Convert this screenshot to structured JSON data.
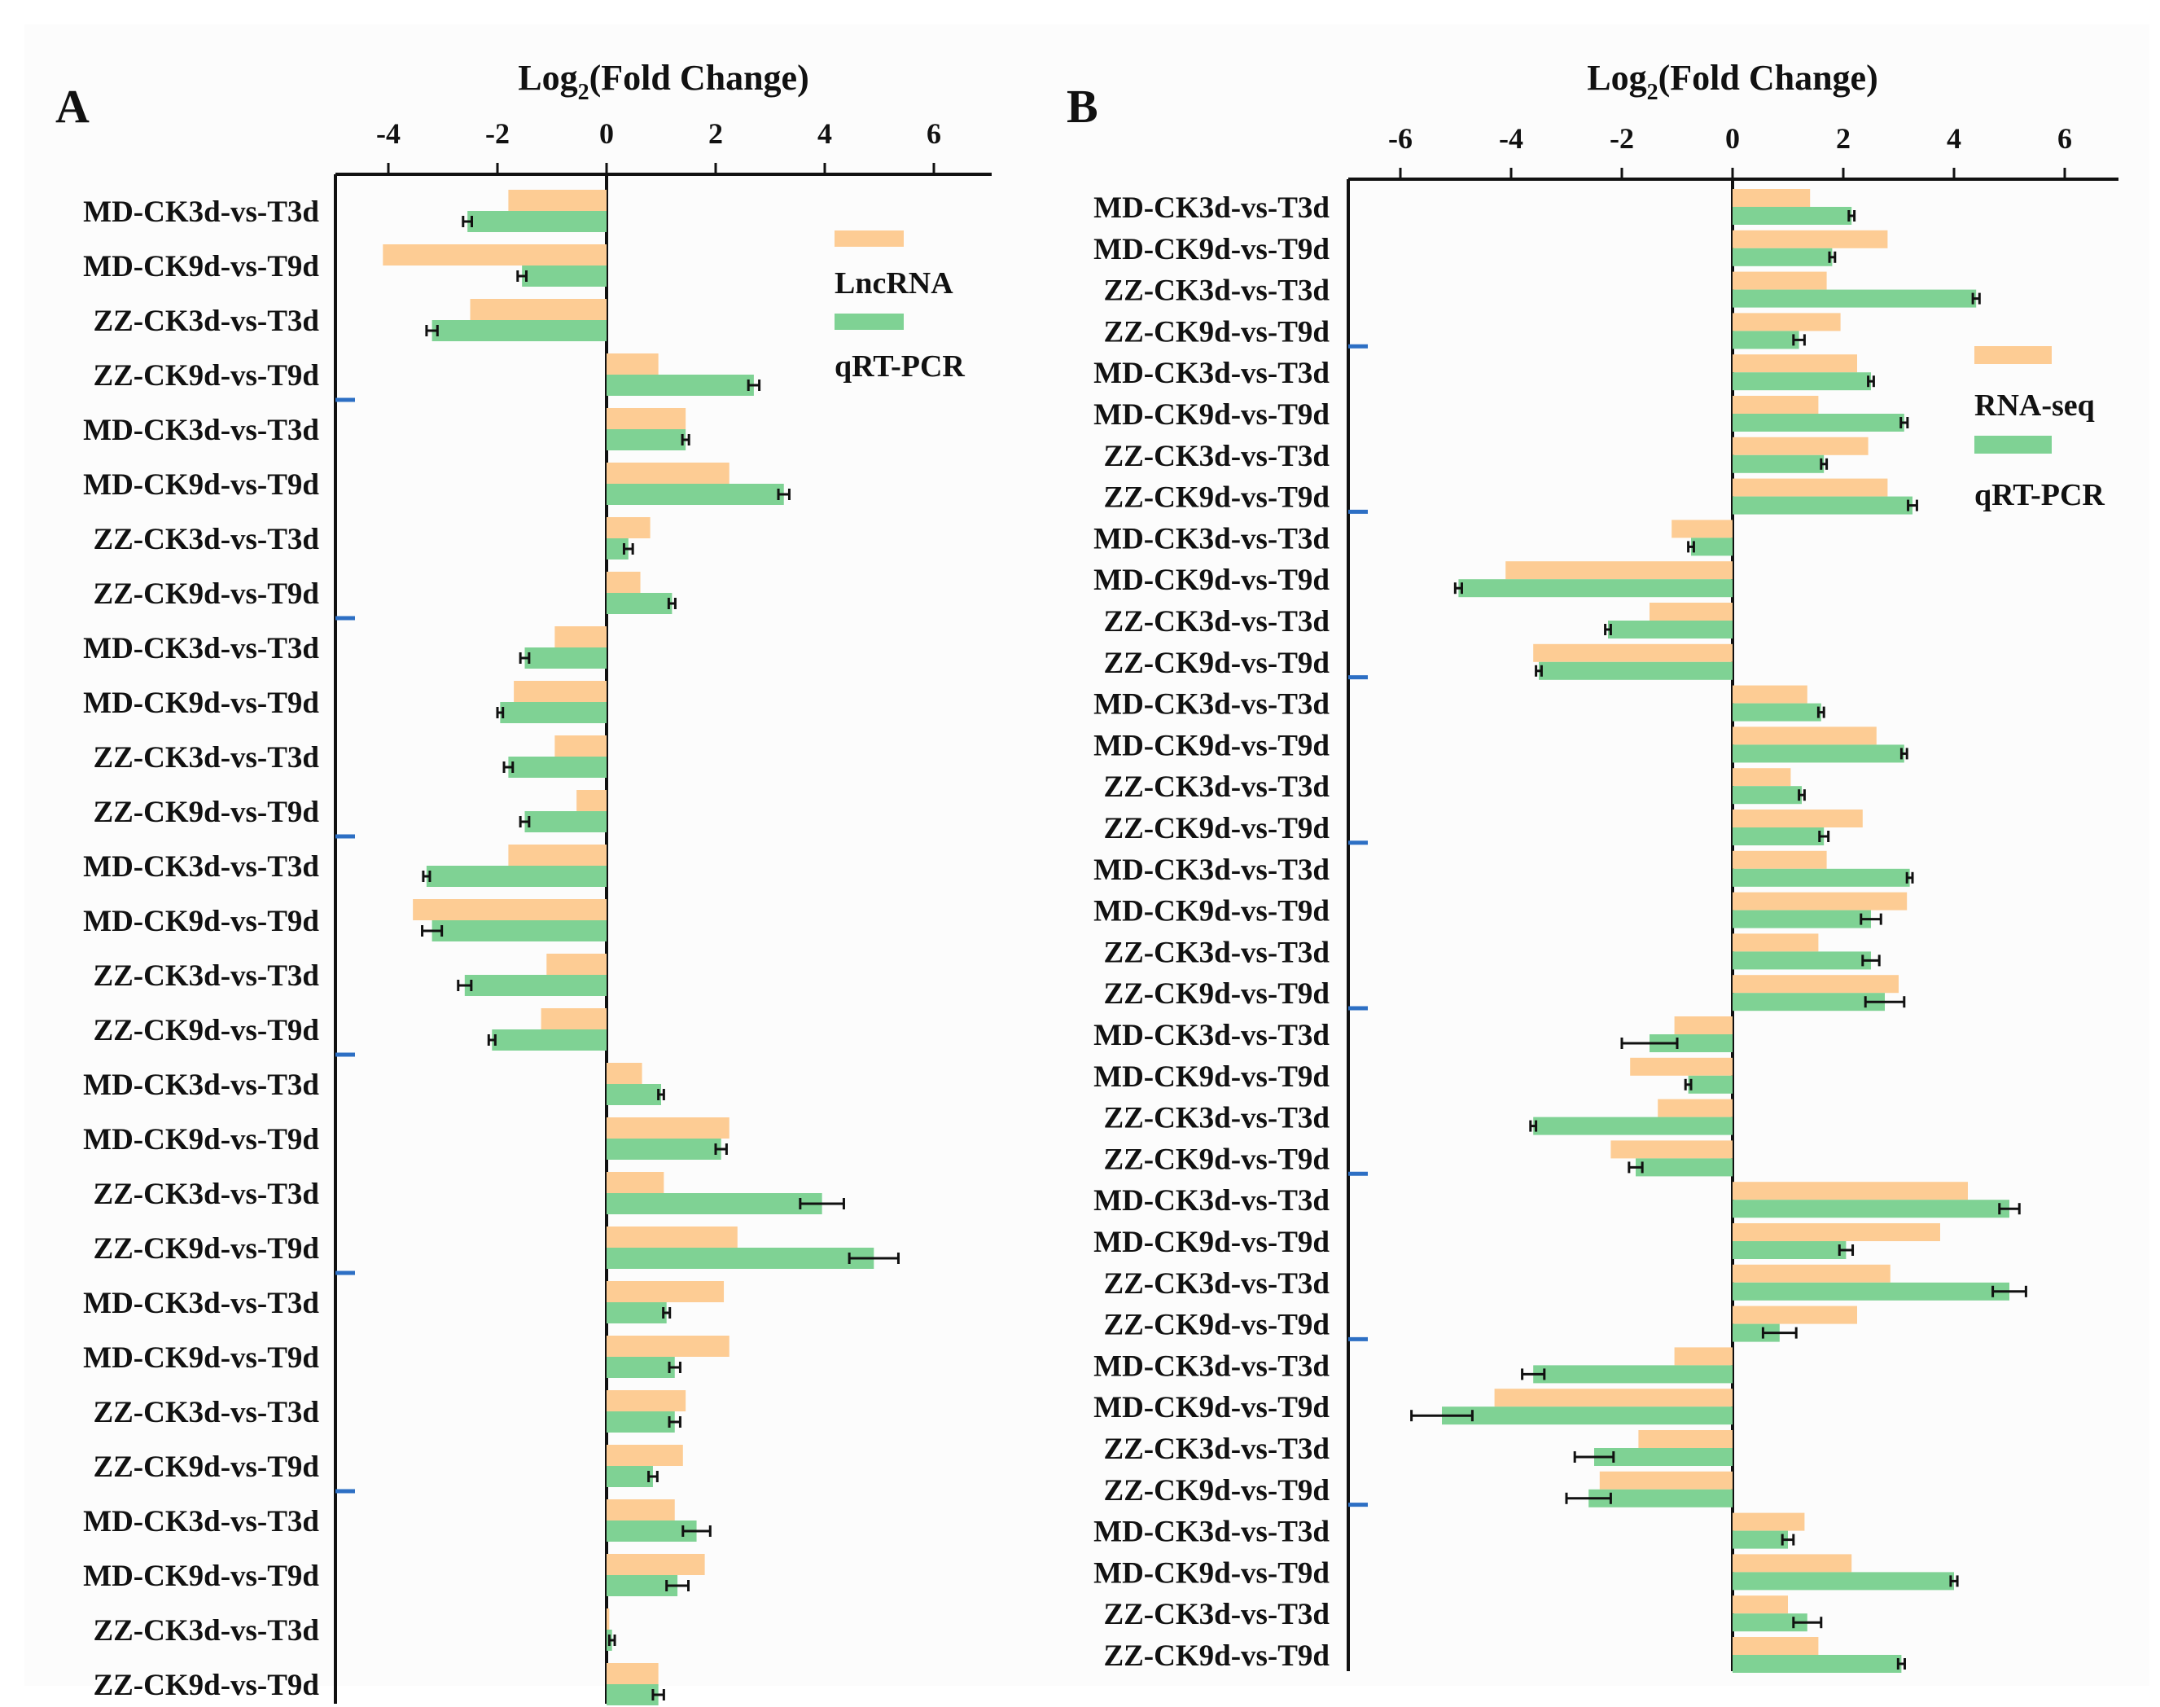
{
  "chart_data": [
    {
      "type": "bar",
      "orientation": "horizontal",
      "panel_label": "A",
      "title": "Log",
      "title_sub": "2",
      "title_rest": "(Fold Change)",
      "xlim": [
        -4.5,
        7
      ],
      "xticks": [
        -4,
        -2,
        0,
        2,
        4,
        6
      ],
      "legend_position": "top-right",
      "categories": [
        "MD-CK3d-vs-T3d",
        "MD-CK9d-vs-T9d",
        "ZZ-CK3d-vs-T3d",
        "ZZ-CK9d-vs-T9d",
        "MD-CK3d-vs-T3d",
        "MD-CK9d-vs-T9d",
        "ZZ-CK3d-vs-T3d",
        "ZZ-CK9d-vs-T9d",
        "MD-CK3d-vs-T3d",
        "MD-CK9d-vs-T9d",
        "ZZ-CK3d-vs-T3d",
        "ZZ-CK9d-vs-T9d",
        "MD-CK3d-vs-T3d",
        "MD-CK9d-vs-T9d",
        "ZZ-CK3d-vs-T3d",
        "ZZ-CK9d-vs-T9d",
        "MD-CK3d-vs-T3d",
        "MD-CK9d-vs-T9d",
        "ZZ-CK3d-vs-T3d",
        "ZZ-CK9d-vs-T9d",
        "MD-CK3d-vs-T3d",
        "MD-CK9d-vs-T9d",
        "ZZ-CK3d-vs-T3d",
        "ZZ-CK9d-vs-T9d",
        "MD-CK3d-vs-T3d",
        "MD-CK9d-vs-T9d",
        "ZZ-CK3d-vs-T3d",
        "ZZ-CK9d-vs-T9d"
      ],
      "series": [
        {
          "name": "LncRNA",
          "color": "#fdcc94",
          "values": [
            -1.8,
            -4.1,
            -2.5,
            0.95,
            1.45,
            2.25,
            0.8,
            0.62,
            -0.95,
            -1.7,
            -0.95,
            -0.55,
            -1.8,
            -3.55,
            -1.1,
            -1.2,
            0.65,
            2.25,
            1.05,
            2.4,
            2.15,
            2.25,
            1.45,
            1.4,
            1.25,
            1.8,
            0.05,
            0.95
          ]
        },
        {
          "name": "qRT-PCR",
          "color": "#7fd294",
          "values": [
            -2.55,
            -1.55,
            -3.2,
            2.7,
            1.45,
            3.25,
            0.4,
            1.2,
            -1.5,
            -1.95,
            -1.8,
            -1.5,
            -3.3,
            -3.2,
            -2.6,
            -2.1,
            1.0,
            2.1,
            3.95,
            4.9,
            1.1,
            1.25,
            1.25,
            0.85,
            1.65,
            1.3,
            0.1,
            0.95
          ],
          "errors": [
            0.08,
            0.08,
            0.1,
            0.1,
            0.06,
            0.1,
            0.08,
            0.06,
            0.08,
            0.05,
            0.08,
            0.08,
            0.06,
            0.18,
            0.12,
            0.06,
            0.05,
            0.1,
            0.4,
            0.45,
            0.06,
            0.1,
            0.1,
            0.08,
            0.25,
            0.2,
            0.05,
            0.1
          ]
        }
      ],
      "group_markers_after": [
        4,
        8,
        12,
        16,
        20,
        24
      ]
    },
    {
      "type": "bar",
      "orientation": "horizontal",
      "panel_label": "B",
      "title": "Log",
      "title_sub": "2",
      "title_rest": "(Fold Change)",
      "xlim": [
        -7,
        7
      ],
      "xticks": [
        -6,
        -4,
        -2,
        0,
        2,
        4,
        6
      ],
      "legend_position": "top-right",
      "categories": [
        "MD-CK3d-vs-T3d",
        "MD-CK9d-vs-T9d",
        "ZZ-CK3d-vs-T3d",
        "ZZ-CK9d-vs-T9d",
        "MD-CK3d-vs-T3d",
        "MD-CK9d-vs-T9d",
        "ZZ-CK3d-vs-T3d",
        "ZZ-CK9d-vs-T9d",
        "MD-CK3d-vs-T3d",
        "MD-CK9d-vs-T9d",
        "ZZ-CK3d-vs-T3d",
        "ZZ-CK9d-vs-T9d",
        "MD-CK3d-vs-T3d",
        "MD-CK9d-vs-T9d",
        "ZZ-CK3d-vs-T3d",
        "ZZ-CK9d-vs-T9d",
        "MD-CK3d-vs-T3d",
        "MD-CK9d-vs-T9d",
        "ZZ-CK3d-vs-T3d",
        "ZZ-CK9d-vs-T9d",
        "MD-CK3d-vs-T3d",
        "MD-CK9d-vs-T9d",
        "ZZ-CK3d-vs-T3d",
        "ZZ-CK9d-vs-T9d",
        "MD-CK3d-vs-T3d",
        "MD-CK9d-vs-T9d",
        "ZZ-CK3d-vs-T3d",
        "ZZ-CK9d-vs-T9d",
        "MD-CK3d-vs-T3d",
        "MD-CK9d-vs-T9d",
        "ZZ-CK3d-vs-T3d",
        "ZZ-CK9d-vs-T9d",
        "MD-CK3d-vs-T3d",
        "MD-CK9d-vs-T9d",
        "ZZ-CK3d-vs-T3d",
        "ZZ-CK9d-vs-T9d"
      ],
      "series": [
        {
          "name": "RNA-seq",
          "color": "#fdcc94",
          "values": [
            1.4,
            2.8,
            1.7,
            1.95,
            2.25,
            1.55,
            2.45,
            2.8,
            -1.1,
            -4.1,
            -1.5,
            -3.6,
            1.35,
            2.6,
            1.05,
            2.35,
            1.7,
            3.15,
            1.55,
            3.0,
            -1.05,
            -1.85,
            -1.35,
            -2.2,
            4.25,
            3.75,
            2.85,
            2.25,
            -1.05,
            -4.3,
            -1.7,
            -2.4,
            1.3,
            2.15,
            1.0,
            1.55
          ]
        },
        {
          "name": "qRT-PCR",
          "color": "#7fd294",
          "values": [
            2.15,
            1.8,
            4.4,
            1.2,
            2.5,
            3.1,
            1.65,
            3.25,
            -0.75,
            -4.95,
            -2.25,
            -3.5,
            1.6,
            3.1,
            1.25,
            1.65,
            3.2,
            2.5,
            2.5,
            2.75,
            -1.5,
            -0.8,
            -3.6,
            -1.75,
            5.0,
            2.05,
            5.0,
            0.85,
            -3.6,
            -5.25,
            -2.5,
            -2.6,
            1.0,
            4.0,
            1.35,
            3.05
          ],
          "errors": [
            0.05,
            0.05,
            0.06,
            0.1,
            0.05,
            0.06,
            0.05,
            0.08,
            0.05,
            0.06,
            0.05,
            0.05,
            0.05,
            0.05,
            0.05,
            0.08,
            0.05,
            0.18,
            0.15,
            0.35,
            0.5,
            0.05,
            0.05,
            0.12,
            0.18,
            0.12,
            0.3,
            0.3,
            0.2,
            0.55,
            0.35,
            0.4,
            0.1,
            0.06,
            0.25,
            0.06
          ]
        }
      ],
      "group_markers_after": [
        4,
        8,
        12,
        16,
        20,
        24,
        28,
        32
      ]
    }
  ]
}
